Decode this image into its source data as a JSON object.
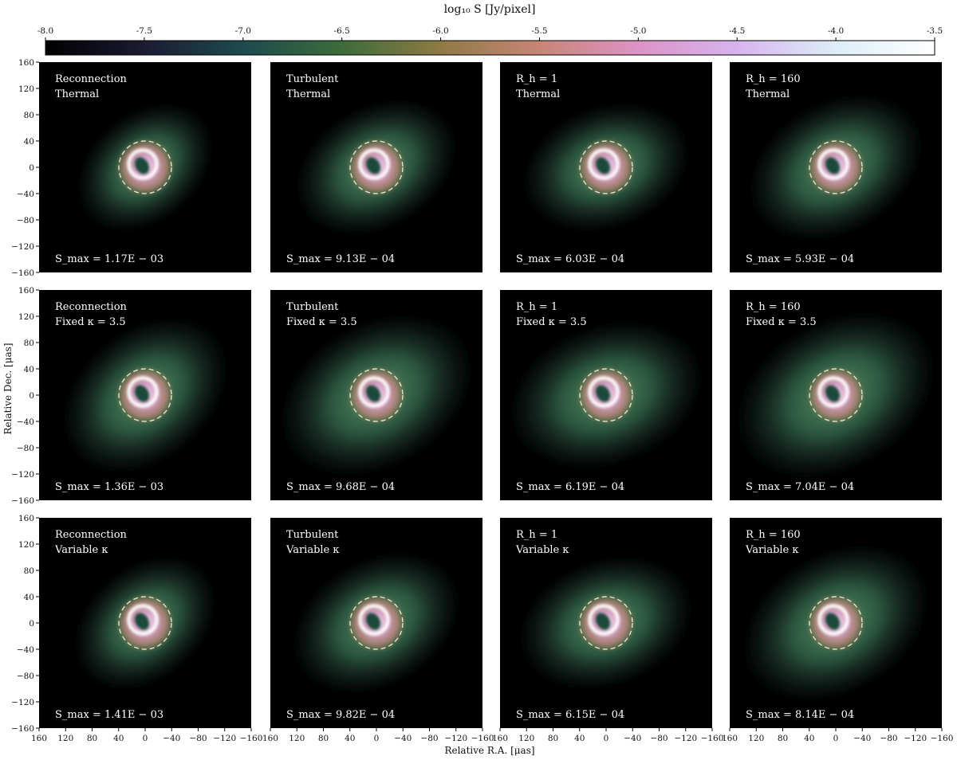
{
  "colorbar": {
    "label": "log₁₀ S [Jy/pixel]",
    "min": -8.0,
    "max": -3.5,
    "ticks": [
      -8.0,
      -7.5,
      -7.0,
      -6.5,
      -6.0,
      -5.5,
      -5.0,
      -4.5,
      -4.0,
      -3.5
    ],
    "tick_labels": [
      "-8.0",
      "-7.5",
      "-7.0",
      "-6.5",
      "-6.0",
      "-5.5",
      "-5.0",
      "-4.5",
      "-4.0",
      "-3.5"
    ],
    "colors": [
      "#000000",
      "#1c1b33",
      "#1d4a4f",
      "#3d6c3a",
      "#8e7a44",
      "#c88576",
      "#dc93c7",
      "#d7b4ee",
      "#ddeef6",
      "#ffffff"
    ]
  },
  "axes": {
    "xlabel": "Relative R.A. [μas]",
    "ylabel": "Relative Dec. [μas]",
    "xticks": [
      160,
      120,
      80,
      40,
      0,
      -40,
      -80,
      -120,
      -160
    ],
    "yticks": [
      160,
      120,
      80,
      40,
      0,
      -40,
      -80,
      -120,
      -160
    ],
    "xtick_labels": [
      "160",
      "120",
      "80",
      "40",
      "0",
      "−40",
      "−80",
      "−120",
      "−160"
    ],
    "ytick_labels": [
      "160",
      "120",
      "80",
      "40",
      "0",
      "−40",
      "−80",
      "−120",
      "−160"
    ],
    "range": [
      -160,
      160
    ]
  },
  "chart_data": {
    "type": "heatmap",
    "grid": {
      "rows": 3,
      "cols": 4
    },
    "ring_radius_uas": 40,
    "panels": [
      {
        "row": 0,
        "col": 0,
        "line1": "Reconnection",
        "line2": "Thermal",
        "smax": "S_max = 1.17E − 03",
        "spread": 0.45,
        "tilt": -40
      },
      {
        "row": 0,
        "col": 1,
        "line1": "Turbulent",
        "line2": "Thermal",
        "smax": "S_max = 9.13E − 04",
        "spread": 0.6,
        "tilt": -30
      },
      {
        "row": 0,
        "col": 2,
        "line1": "R_h = 1",
        "line2": "Thermal",
        "smax": "S_max = 6.03E − 04",
        "spread": 0.6,
        "tilt": -20
      },
      {
        "row": 0,
        "col": 3,
        "line1": "R_h = 160",
        "line2": "Thermal",
        "smax": "S_max = 5.93E − 04",
        "spread": 0.7,
        "tilt": -30
      },
      {
        "row": 1,
        "col": 0,
        "line1": "Reconnection",
        "line2": "Fixed κ = 3.5",
        "smax": "S_max = 1.36E − 03",
        "spread": 0.7,
        "tilt": -40
      },
      {
        "row": 1,
        "col": 1,
        "line1": "Turbulent",
        "line2": "Fixed κ = 3.5",
        "smax": "S_max = 9.68E − 04",
        "spread": 0.85,
        "tilt": -30
      },
      {
        "row": 1,
        "col": 2,
        "line1": "R_h = 1",
        "line2": "Fixed κ = 3.5",
        "smax": "S_max = 6.19E − 04",
        "spread": 0.8,
        "tilt": -20
      },
      {
        "row": 1,
        "col": 3,
        "line1": "R_h = 160",
        "line2": "Fixed κ = 3.5",
        "smax": "S_max = 7.04E − 04",
        "spread": 0.9,
        "tilt": -30
      },
      {
        "row": 2,
        "col": 0,
        "line1": "Reconnection",
        "line2": "Variable κ",
        "smax": "S_max = 1.41E − 03",
        "spread": 0.5,
        "tilt": -40
      },
      {
        "row": 2,
        "col": 1,
        "line1": "Turbulent",
        "line2": "Variable κ",
        "smax": "S_max = 9.82E − 04",
        "spread": 0.65,
        "tilt": -30
      },
      {
        "row": 2,
        "col": 2,
        "line1": "R_h = 1",
        "line2": "Variable κ",
        "smax": "S_max = 6.15E − 04",
        "spread": 0.65,
        "tilt": -20
      },
      {
        "row": 2,
        "col": 3,
        "line1": "R_h = 160",
        "line2": "Variable κ",
        "smax": "S_max = 8.14E − 04",
        "spread": 0.8,
        "tilt": -30
      }
    ]
  }
}
